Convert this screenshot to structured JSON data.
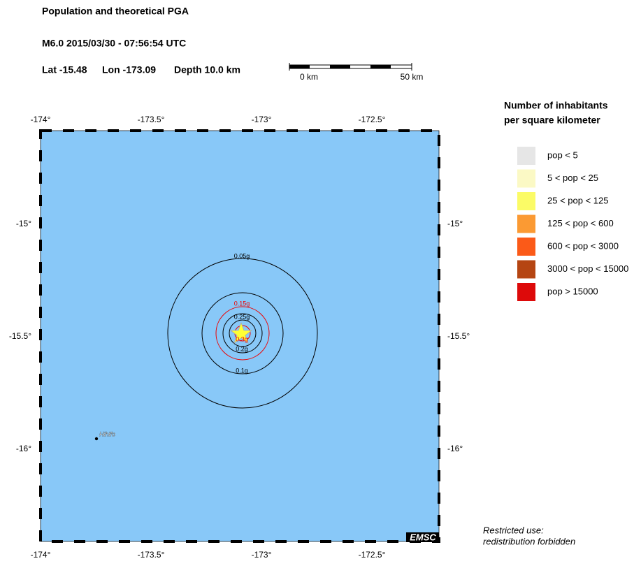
{
  "header": {
    "title": "Population and theoretical PGA",
    "event": "M6.0  2015/03/30 - 07:56:54 UTC",
    "lat": "Lat -15.48",
    "lon": "Lon -173.09",
    "depth": "Depth  10.0 km"
  },
  "scale_bar": {
    "start": "0 km",
    "end": "50 km"
  },
  "map": {
    "lon_labels": [
      "-174°",
      "-173.5°",
      "-173°",
      "-172.5°"
    ],
    "lat_labels": [
      "-15°",
      "-15.5°",
      "-16°"
    ],
    "contours": [
      "0.05g",
      "0.1g",
      "0.15g",
      "0.25g",
      "0.2g",
      "0.3g"
    ],
    "place": "Hihifo",
    "credit": "EMSC"
  },
  "legend": {
    "title": [
      "Number of inhabitants",
      "per square kilometer"
    ],
    "items": [
      {
        "label": "pop < 5",
        "color": "#e6e6e6"
      },
      {
        "label": "5 < pop < 25",
        "color": "#fbf9c5"
      },
      {
        "label": "25 < pop < 125",
        "color": "#fbfb66"
      },
      {
        "label": "125 < pop < 600",
        "color": "#fb9a33"
      },
      {
        "label": "600 < pop < 3000",
        "color": "#fb5a18"
      },
      {
        "label": "3000 < pop < 15000",
        "color": "#b54512"
      },
      {
        "label": "pop > 15000",
        "color": "#dd0a0a"
      }
    ]
  },
  "notice": [
    "Restricted use:",
    "redistribution forbidden"
  ]
}
